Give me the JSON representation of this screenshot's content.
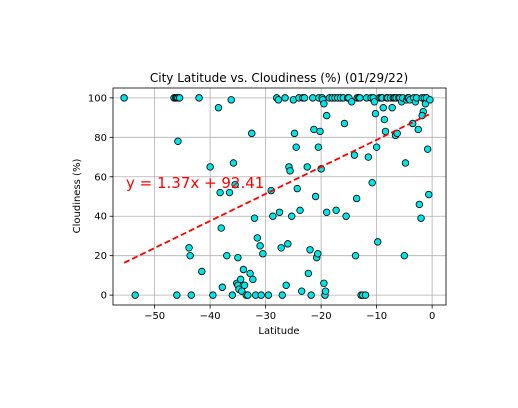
{
  "chart_data": {
    "type": "scatter",
    "title": "City Latitude vs. Cloudiness (%) (01/29/22)",
    "xlabel": "Latitude",
    "ylabel": "Cloudiness (%)",
    "xlim": [
      -57.5,
      2.5
    ],
    "ylim": [
      -5,
      105
    ],
    "xticks": [
      -50,
      -40,
      -30,
      -20,
      -10,
      0
    ],
    "yticks": [
      0,
      20,
      40,
      60,
      80,
      100
    ],
    "grid": true,
    "point_color": "#00e5e5",
    "point_edge_color": "#000000",
    "regression": {
      "equation": "y = 1.37x + 92.41",
      "slope": 1.37,
      "intercept": 92.41,
      "x_range": [
        -55.5,
        -0.5
      ],
      "color": "#ff0000",
      "style": "dashed"
    },
    "points": [
      [
        -55.5,
        100
      ],
      [
        -53.5,
        0
      ],
      [
        -46.5,
        100
      ],
      [
        -46.2,
        100
      ],
      [
        -46.0,
        100
      ],
      [
        -45.8,
        100
      ],
      [
        -45.5,
        100
      ],
      [
        -45.8,
        78
      ],
      [
        -46.0,
        0
      ],
      [
        -43.8,
        24
      ],
      [
        -43.6,
        20
      ],
      [
        -43.4,
        0
      ],
      [
        -42.0,
        100
      ],
      [
        -41.5,
        12
      ],
      [
        -40.0,
        65
      ],
      [
        -39.5,
        0
      ],
      [
        -38.5,
        95
      ],
      [
        -38.2,
        52
      ],
      [
        -38.0,
        34
      ],
      [
        -37.8,
        4
      ],
      [
        -37.0,
        20
      ],
      [
        -36.5,
        52
      ],
      [
        -36.2,
        99
      ],
      [
        -36.0,
        0
      ],
      [
        -35.8,
        67
      ],
      [
        -35.5,
        56
      ],
      [
        -35.0,
        19
      ],
      [
        -35.2,
        6
      ],
      [
        -35.0,
        5
      ],
      [
        -34.8,
        3
      ],
      [
        -34.5,
        8
      ],
      [
        -34.3,
        2
      ],
      [
        -34.0,
        13
      ],
      [
        -33.8,
        5
      ],
      [
        -33.5,
        0
      ],
      [
        -33.2,
        0
      ],
      [
        -32.8,
        11
      ],
      [
        -32.5,
        82
      ],
      [
        -32.3,
        8
      ],
      [
        -32.0,
        39
      ],
      [
        -31.8,
        0
      ],
      [
        -31.5,
        29
      ],
      [
        -31.0,
        25
      ],
      [
        -30.8,
        0
      ],
      [
        -30.5,
        21
      ],
      [
        -29.5,
        0
      ],
      [
        -29.0,
        53
      ],
      [
        -28.7,
        40
      ],
      [
        -28.0,
        100
      ],
      [
        -27.7,
        99
      ],
      [
        -27.5,
        42
      ],
      [
        -27.2,
        24
      ],
      [
        -27.0,
        0
      ],
      [
        -26.5,
        100
      ],
      [
        -26.3,
        5
      ],
      [
        -26.0,
        26
      ],
      [
        -25.8,
        65
      ],
      [
        -25.6,
        63
      ],
      [
        -25.3,
        40
      ],
      [
        -25.0,
        99
      ],
      [
        -24.8,
        82
      ],
      [
        -24.5,
        75
      ],
      [
        -24.3,
        54
      ],
      [
        -24.0,
        100
      ],
      [
        -23.8,
        43
      ],
      [
        -23.5,
        2
      ],
      [
        -23.3,
        100
      ],
      [
        -23.0,
        100
      ],
      [
        -22.5,
        65
      ],
      [
        -22.3,
        11
      ],
      [
        -22.0,
        23
      ],
      [
        -21.8,
        0
      ],
      [
        -21.5,
        100
      ],
      [
        -21.3,
        84
      ],
      [
        -21.0,
        50
      ],
      [
        -20.8,
        19
      ],
      [
        -20.6,
        21
      ],
      [
        -20.4,
        100
      ],
      [
        -20.2,
        83
      ],
      [
        -20.5,
        75
      ],
      [
        -20.0,
        64
      ],
      [
        -19.8,
        100
      ],
      [
        -19.7,
        99
      ],
      [
        -19.5,
        97
      ],
      [
        -19.3,
        0
      ],
      [
        -19.5,
        6
      ],
      [
        -19.2,
        2
      ],
      [
        -19.0,
        91
      ],
      [
        -19.0,
        42
      ],
      [
        -18.5,
        100
      ],
      [
        -18.0,
        100
      ],
      [
        -17.5,
        100
      ],
      [
        -17.3,
        43
      ],
      [
        -17.0,
        100
      ],
      [
        -16.5,
        100
      ],
      [
        -16.0,
        100
      ],
      [
        -15.8,
        87
      ],
      [
        -15.5,
        40
      ],
      [
        -15.2,
        100
      ],
      [
        -15.0,
        100
      ],
      [
        -14.5,
        98
      ],
      [
        -14.0,
        71
      ],
      [
        -13.8,
        20
      ],
      [
        -13.6,
        49
      ],
      [
        -13.5,
        100
      ],
      [
        -13.2,
        100
      ],
      [
        -13.0,
        100
      ],
      [
        -12.8,
        0
      ],
      [
        -12.5,
        0
      ],
      [
        -12.0,
        0
      ],
      [
        -11.8,
        100
      ],
      [
        -11.5,
        70
      ],
      [
        -11.0,
        100
      ],
      [
        -10.8,
        57
      ],
      [
        -10.6,
        100
      ],
      [
        -10.4,
        98
      ],
      [
        -10.2,
        92
      ],
      [
        -10.0,
        75
      ],
      [
        -9.8,
        27
      ],
      [
        -9.5,
        100
      ],
      [
        -9.2,
        100
      ],
      [
        -9.0,
        100
      ],
      [
        -8.8,
        95
      ],
      [
        -8.6,
        89
      ],
      [
        -8.4,
        83
      ],
      [
        -8.2,
        100
      ],
      [
        -8.0,
        100
      ],
      [
        -7.5,
        100
      ],
      [
        -7.2,
        95
      ],
      [
        -7.0,
        100
      ],
      [
        -6.8,
        100
      ],
      [
        -6.6,
        81
      ],
      [
        -6.5,
        100
      ],
      [
        -6.3,
        82
      ],
      [
        -6.0,
        100
      ],
      [
        -5.8,
        100
      ],
      [
        -5.5,
        98
      ],
      [
        -5.3,
        100
      ],
      [
        -5.0,
        20
      ],
      [
        -4.8,
        67
      ],
      [
        -4.6,
        99
      ],
      [
        -4.4,
        100
      ],
      [
        -4.2,
        100
      ],
      [
        -4.0,
        99
      ],
      [
        -3.5,
        87
      ],
      [
        -3.3,
        100
      ],
      [
        -3.0,
        98
      ],
      [
        -2.8,
        100
      ],
      [
        -2.5,
        84
      ],
      [
        -2.3,
        46
      ],
      [
        -2.0,
        39
      ],
      [
        -1.8,
        100
      ],
      [
        -1.6,
        93
      ],
      [
        -1.4,
        100
      ],
      [
        -1.2,
        97
      ],
      [
        -1.0,
        100
      ],
      [
        -0.8,
        74
      ],
      [
        -0.6,
        51
      ],
      [
        -0.4,
        99
      ],
      [
        -1.8,
        91
      ]
    ]
  }
}
